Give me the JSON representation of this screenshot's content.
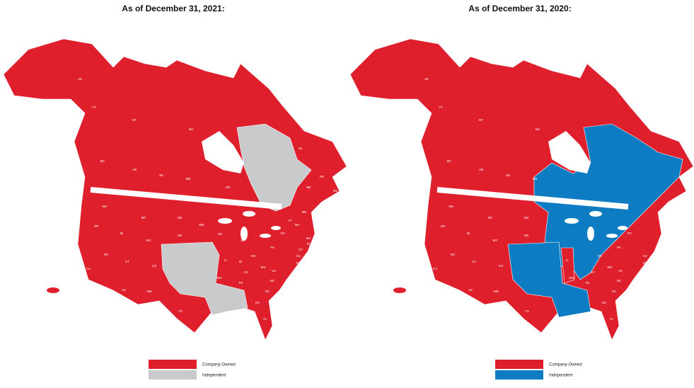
{
  "maps": [
    {
      "title": "As of December 31, 2021:",
      "labels": [
        "AK",
        "YT",
        "NT",
        "NU",
        "BC",
        "AB",
        "SK",
        "MB",
        "ON",
        "NL",
        "PE",
        "NS",
        "NB",
        "WA",
        "MT",
        "ND",
        "MN",
        "OR",
        "ID",
        "SD",
        "WI",
        "MI",
        "WY",
        "NY",
        "VT",
        "NH",
        "ME",
        "MA",
        "RI",
        "CT",
        "NJ",
        "DE",
        "MD",
        "PA",
        "OH",
        "IN",
        "IL",
        "NV",
        "UT",
        "CO",
        "CA",
        "MO",
        "KY",
        "WV",
        "VA",
        "NC",
        "TN",
        "AZ",
        "NM",
        "SC",
        "GA",
        "TX",
        "FL",
        "HI"
      ],
      "legend": [
        {
          "label": "Company-Owned",
          "color": "#e01f2d"
        },
        {
          "label": "Independent",
          "color": "#c9cacc"
        }
      ]
    },
    {
      "title": "As of December 31, 2020:",
      "labels": [
        "AK",
        "YT",
        "NT",
        "NU",
        "BC",
        "AB",
        "SK",
        "MB",
        "WA",
        "MT",
        "ND",
        "OR",
        "ID",
        "SD",
        "WY",
        "NY",
        "PA",
        "NJ",
        "DE",
        "MD",
        "OH",
        "IL",
        "NV",
        "UT",
        "CO",
        "CA",
        "MO",
        "KY",
        "WV",
        "VA",
        "NC",
        "TN",
        "AZ",
        "NM",
        "SC",
        "GA",
        "TX",
        "FL",
        "HI"
      ],
      "legend": [
        {
          "label": "Company-Owned",
          "color": "#e01f2d"
        },
        {
          "label": "Independent",
          "color": "#0e7cc2"
        }
      ]
    }
  ]
}
